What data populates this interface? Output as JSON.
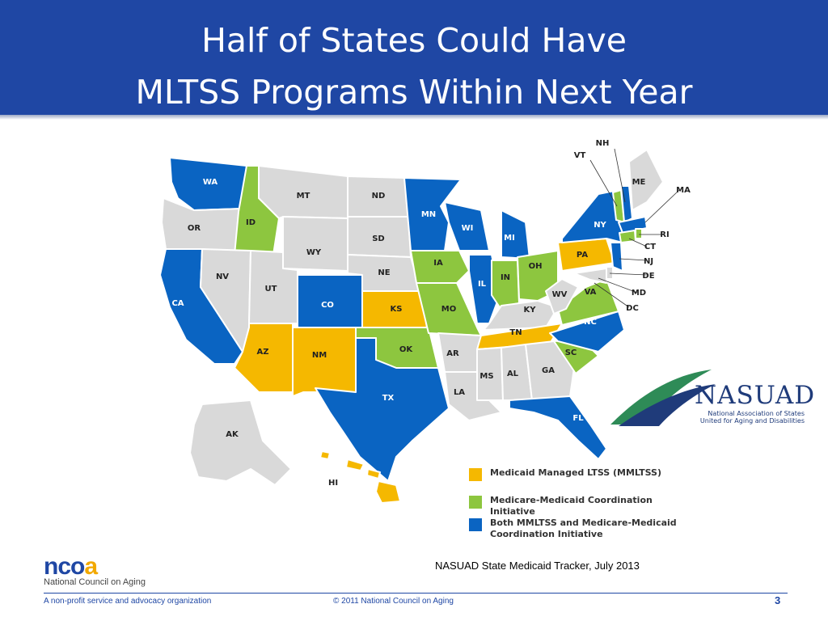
{
  "title": {
    "line1": "Half of States Could Have",
    "line2": "MLTSS Programs Within Next Year"
  },
  "colors": {
    "mltss": "#f5b800",
    "coord": "#8dc63f",
    "both": "#0a64c2",
    "none": "#d9d9d9",
    "title_bar": "#1f47a4"
  },
  "legend": {
    "mltss": "Medicaid Managed LTSS (MMLTSS)",
    "coord": "Medicare-Medicaid Coordination Initiative",
    "both": "Both MMLTSS and Medicare-Medicaid Coordination Initiative"
  },
  "map_labels": {
    "WA": "WA",
    "OR": "OR",
    "CA": "CA",
    "ID": "ID",
    "NV": "NV",
    "MT": "MT",
    "WY": "WY",
    "UT": "UT",
    "AZ": "AZ",
    "CO": "CO",
    "NM": "NM",
    "ND": "ND",
    "SD": "SD",
    "NE": "NE",
    "KS": "KS",
    "OK": "OK",
    "TX": "TX",
    "MN": "MN",
    "IA": "IA",
    "MO": "MO",
    "AR": "AR",
    "LA": "LA",
    "WI": "WI",
    "IL": "IL",
    "MI": "MI",
    "IN": "IN",
    "OH": "OH",
    "KY": "KY",
    "TN": "TN",
    "MS": "MS",
    "AL": "AL",
    "GA": "GA",
    "FL": "FL",
    "SC": "SC",
    "NC": "NC",
    "VA": "VA",
    "WV": "WV",
    "PA": "PA",
    "NY": "NY",
    "VT": "VT",
    "NH": "NH",
    "ME": "ME",
    "MA": "MA",
    "RI": "RI",
    "CT": "CT",
    "NJ": "NJ",
    "DE": "DE",
    "MD": "MD",
    "DC": "DC",
    "AK": "AK",
    "HI": "HI"
  },
  "nasuad": {
    "name": "NASUAD",
    "line1": "National Association of States",
    "line2": "United for Aging and Disabilities"
  },
  "source": "NASUAD State Medicaid Tracker, July 2013",
  "footer": {
    "logo_n": "nco",
    "logo_a": "a",
    "org": "National Council on Aging",
    "left": "A non-profit service and advocacy organization",
    "center": "© 2011 National Council on Aging",
    "page": "3"
  }
}
